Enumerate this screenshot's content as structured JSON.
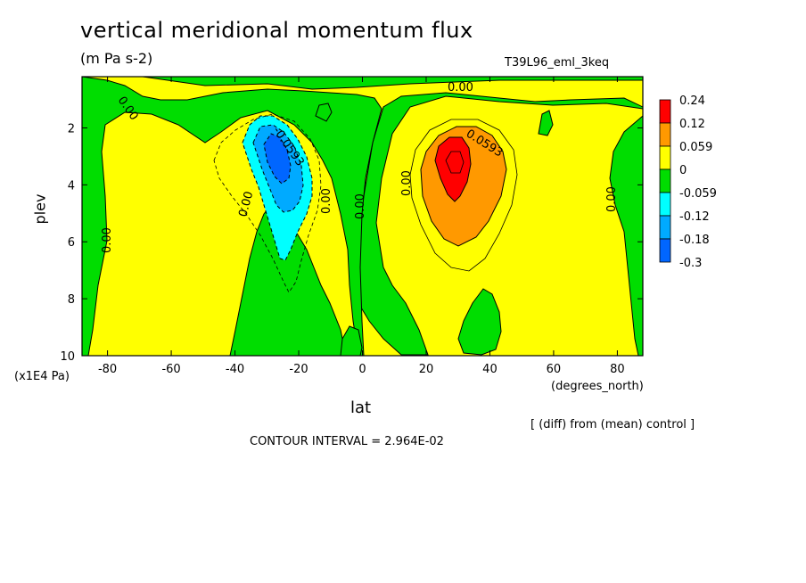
{
  "title": "vertical meridional momentum flux",
  "units": "(m Pa s-2)",
  "run_name": "T39L96_eml_3keq",
  "y_unit": "(x1E4 Pa)",
  "x_unit": "(degrees_north)",
  "diff_note": "[ (diff) from (mean) control ]",
  "contour_interval": "CONTOUR INTERVAL = 2.964E-02",
  "chart_data": {
    "type": "contour",
    "xlabel": "lat",
    "ylabel": "plev",
    "xlim": [
      -88,
      88
    ],
    "ylim": [
      0.2,
      10
    ],
    "y_inverted": true,
    "x_ticks": [
      -80,
      -60,
      -40,
      -20,
      0,
      20,
      40,
      60,
      80
    ],
    "y_ticks": [
      2,
      4,
      6,
      8,
      10
    ],
    "legend_position": "right",
    "colorbar": [
      {
        "label": "0.24",
        "color": "#ff0000"
      },
      {
        "label": "0.12",
        "color": "#ff9900"
      },
      {
        "label": "0.059",
        "color": "#ffff00"
      },
      {
        "label": "0",
        "color": "#00dd00"
      },
      {
        "label": "-0.059",
        "color": "#00ffff"
      },
      {
        "label": "-0.12",
        "color": "#00aaff"
      },
      {
        "label": "-0.18",
        "color": "#0066ff"
      },
      {
        "label": "-0.3",
        "color": ""
      }
    ],
    "colors": {
      "positive_low": "#ffff00",
      "positive_mid": "#ff9900",
      "positive_high": "#ff0000",
      "negative_low": "#00dd00",
      "negative_mid": "#00ffff",
      "negative_strong": "#00aaff",
      "negative_max": "#0066ff"
    },
    "contour_labels": [
      "0.00",
      "0.00",
      "0.00",
      "0.00",
      "0.00",
      "0.00",
      "0.00",
      "0.00",
      "-0.0593",
      "0.0593"
    ],
    "features": [
      {
        "name": "southern negative maximum",
        "lat": -27,
        "plev": 3,
        "value": -0.3
      },
      {
        "name": "northern positive maximum",
        "lat": 30,
        "plev": 3,
        "value": 0.24
      }
    ]
  }
}
